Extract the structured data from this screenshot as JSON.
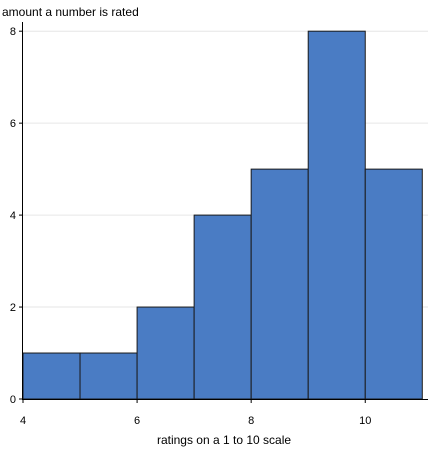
{
  "chart_data": {
    "type": "bar",
    "subtype": "histogram",
    "bins": [
      {
        "x0": 4,
        "x1": 5,
        "count": 1
      },
      {
        "x0": 5,
        "x1": 6,
        "count": 1
      },
      {
        "x0": 6,
        "x1": 7,
        "count": 2
      },
      {
        "x0": 7,
        "x1": 8,
        "count": 4
      },
      {
        "x0": 8,
        "x1": 9,
        "count": 5
      },
      {
        "x0": 9,
        "x1": 10,
        "count": 8
      },
      {
        "x0": 10,
        "x1": 11,
        "count": 5
      }
    ],
    "xlabel": "ratings on a 1 to 10 scale",
    "ylabel": "amount a number is rated",
    "xlim": [
      4,
      11.1
    ],
    "ylim": [
      0,
      8.2
    ],
    "xticks": [
      4,
      6,
      8,
      10
    ],
    "yticks": [
      0,
      2,
      4,
      6,
      8
    ],
    "grid": "horizontal",
    "bar_color": "#4a7cc4",
    "bar_edge_color": "#1a1a1a"
  }
}
